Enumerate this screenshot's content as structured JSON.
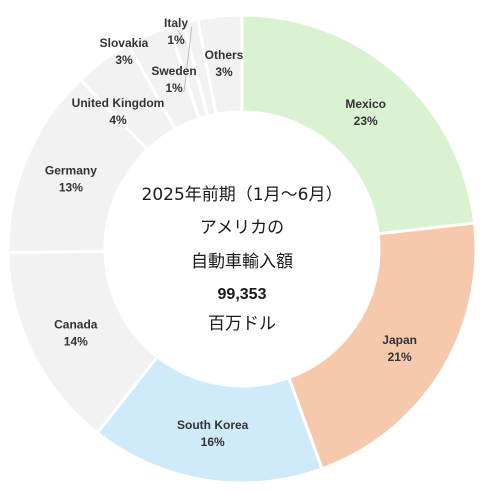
{
  "chart_data": {
    "type": "pie",
    "donut": true,
    "center_label": {
      "line1": "2025年前期（1月～6月）",
      "line2": "アメリカの",
      "line3": "自動車輸入額",
      "value": "99,353",
      "unit": "百万ドル"
    },
    "slices": [
      {
        "name": "Mexico",
        "value": 23,
        "label": "23%",
        "color": "#d9f2d0"
      },
      {
        "name": "Japan",
        "value": 21,
        "label": "21%",
        "color": "#f6c9ad"
      },
      {
        "name": "South Korea",
        "value": 16,
        "label": "16%",
        "color": "#cfeafa"
      },
      {
        "name": "Canada",
        "value": 14,
        "label": "14%",
        "color": "#f2f2f2"
      },
      {
        "name": "Germany",
        "value": 13,
        "label": "13%",
        "color": "#f2f2f2"
      },
      {
        "name": "United Kingdom",
        "value": 4,
        "label": "4%",
        "color": "#f2f2f2"
      },
      {
        "name": "Slovakia",
        "value": 3,
        "label": "3%",
        "color": "#f2f2f2"
      },
      {
        "name": "Italy",
        "value": 1,
        "label": "1%",
        "color": "#f2f2f2"
      },
      {
        "name": "Sweden",
        "value": 1,
        "label": "1%",
        "color": "#f2f2f2"
      },
      {
        "name": "Others",
        "value": 3,
        "label": "3%",
        "color": "#f2f2f2"
      }
    ]
  }
}
